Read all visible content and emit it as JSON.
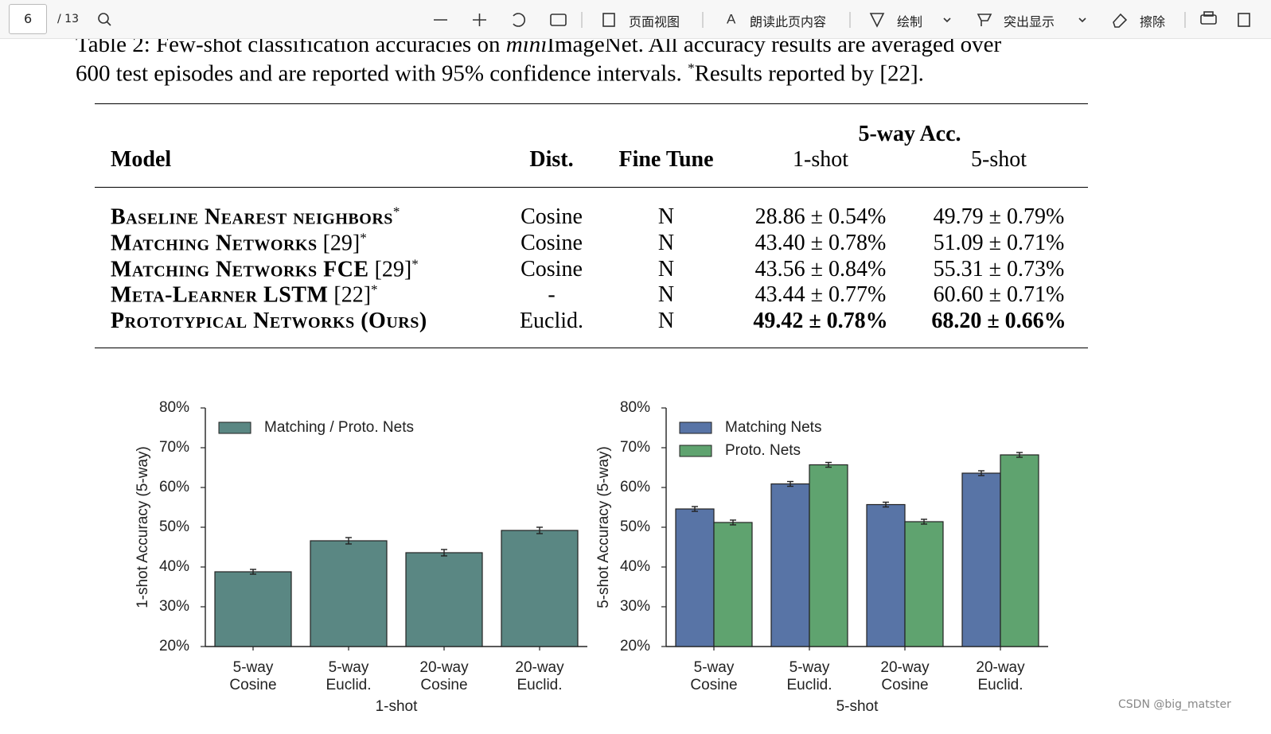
{
  "toolbar": {
    "page": "6",
    "total": "/ 13",
    "buttons": [
      "页面视图",
      "朗读此页内容",
      "绘制",
      "突出显示",
      "擦除"
    ]
  },
  "caption": {
    "line1": [
      "Table 2: Few-shot classification accuracies on ",
      "mini",
      "ImageNet. All accuracy results are averaged over"
    ],
    "line2": [
      "600 test episodes and are reported with 95% confidence intervals. ",
      "*",
      "Results reported by [22]."
    ]
  },
  "table": {
    "headers": {
      "model": "Model",
      "dist": "Dist.",
      "finetune": "Fine Tune",
      "group": "5-way Acc.",
      "shot1": "1-shot",
      "shot5": "5-shot"
    },
    "rows": [
      {
        "name": "Baseline Nearest neighbors",
        "star": "*",
        "dist": "Cosine",
        "finetune": "N",
        "acc1": "28.86 ± 0.54%",
        "acc5": "49.79 ± 0.79%"
      },
      {
        "name": "Matching Networks",
        "ref": "[29]",
        "star": "*",
        "dist": "Cosine",
        "finetune": "N",
        "acc1": "43.40 ± 0.78%",
        "acc5": "51.09 ± 0.71%"
      },
      {
        "name": "Matching Networks FCE",
        "ref": "[29]",
        "star": "*",
        "dist": "Cosine",
        "finetune": "N",
        "acc1": "43.56 ± 0.84%",
        "acc5": "55.31 ± 0.73%"
      },
      {
        "name": "Meta-Learner LSTM",
        "ref": "[22]",
        "star": "*",
        "dist": "-",
        "finetune": "N",
        "acc1": "43.44 ± 0.77%",
        "acc5": "60.60 ± 0.71%"
      },
      {
        "name": "Prototypical Networks (Ours)",
        "dist": "Euclid.",
        "finetune": "N",
        "acc1": "49.42 ± 0.78%",
        "acc5": "68.20 ± 0.66%",
        "bold": true
      }
    ]
  },
  "chart_data": [
    {
      "type": "bar",
      "xlabel": "1-shot",
      "ylabel": "1-shot Accuracy (5-way)",
      "categories": [
        "5-way\nCosine",
        "5-way\nEuclid.",
        "20-way\nCosine",
        "20-way\nEuclid."
      ],
      "series": [
        {
          "name": "Matching / Proto. Nets",
          "color": "#5a8783",
          "values": [
            38.8,
            46.6,
            43.6,
            49.2
          ],
          "errors": [
            0.6,
            0.8,
            0.8,
            0.8
          ]
        }
      ],
      "ylim": [
        20,
        80
      ],
      "yticks": [
        {
          "value": 20,
          "label": "20%"
        },
        {
          "value": 30,
          "label": "30%"
        },
        {
          "value": 40,
          "label": "40%"
        },
        {
          "value": 50,
          "label": "50%"
        },
        {
          "value": 60,
          "label": "60%"
        },
        {
          "value": 70,
          "label": "70%"
        },
        {
          "value": 80,
          "label": "80%"
        }
      ],
      "legend": "upper left"
    },
    {
      "type": "bar",
      "xlabel": "5-shot",
      "ylabel": "5-shot Accuracy (5-way)",
      "categories": [
        "5-way\nCosine",
        "5-way\nEuclid.",
        "20-way\nCosine",
        "20-way\nEuclid."
      ],
      "series": [
        {
          "name": "Matching Nets",
          "color": "#5874a6",
          "values": [
            54.6,
            60.9,
            55.7,
            63.6
          ],
          "errors": [
            0.6,
            0.6,
            0.6,
            0.6
          ]
        },
        {
          "name": "Proto. Nets",
          "color": "#5fa36f",
          "values": [
            51.2,
            65.7,
            51.4,
            68.2
          ],
          "errors": [
            0.6,
            0.6,
            0.6,
            0.6
          ]
        }
      ],
      "ylim": [
        20,
        80
      ],
      "yticks": [
        {
          "value": 20,
          "label": "20%"
        },
        {
          "value": 30,
          "label": "30%"
        },
        {
          "value": 40,
          "label": "40%"
        },
        {
          "value": 50,
          "label": "50%"
        },
        {
          "value": 60,
          "label": "60%"
        },
        {
          "value": 70,
          "label": "70%"
        },
        {
          "value": 80,
          "label": "80%"
        }
      ],
      "legend": "upper left"
    }
  ],
  "watermark": "CSDN @big_matster"
}
